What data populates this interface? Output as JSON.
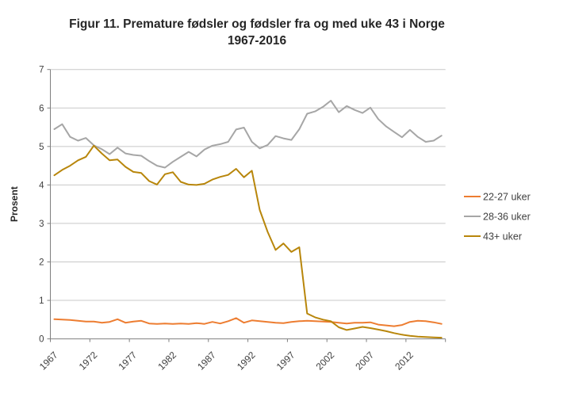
{
  "title": {
    "line1": "Figur 11. Premature fødsler og fødsler fra og med uke 43 i Norge",
    "line2": "1967-2016"
  },
  "chart_data": {
    "type": "line",
    "title": "Figur 11. Premature fødsler og fødsler fra og med uke 43 i Norge 1967-2016",
    "xlabel": "",
    "ylabel": "Prosent",
    "ylim": [
      0,
      7
    ],
    "yticks": [
      0,
      1,
      2,
      3,
      4,
      5,
      6,
      7
    ],
    "xticks": [
      1967,
      1972,
      1977,
      1982,
      1987,
      1992,
      1997,
      2002,
      2007,
      2012
    ],
    "grid": true,
    "legend_position": "right",
    "x": [
      1967,
      1968,
      1969,
      1970,
      1971,
      1972,
      1973,
      1974,
      1975,
      1976,
      1977,
      1978,
      1979,
      1980,
      1981,
      1982,
      1983,
      1984,
      1985,
      1986,
      1987,
      1988,
      1989,
      1990,
      1991,
      1992,
      1993,
      1994,
      1995,
      1996,
      1997,
      1998,
      1999,
      2000,
      2001,
      2002,
      2003,
      2004,
      2005,
      2006,
      2007,
      2008,
      2009,
      2010,
      2011,
      2012,
      2013,
      2014,
      2015,
      2016
    ],
    "series": [
      {
        "name": "22-27 uker",
        "color": "#ED7D31",
        "values": [
          0.51,
          0.5,
          0.49,
          0.47,
          0.45,
          0.45,
          0.42,
          0.44,
          0.51,
          0.42,
          0.45,
          0.47,
          0.4,
          0.39,
          0.4,
          0.39,
          0.4,
          0.39,
          0.41,
          0.39,
          0.44,
          0.4,
          0.46,
          0.54,
          0.42,
          0.48,
          0.46,
          0.44,
          0.42,
          0.41,
          0.44,
          0.46,
          0.47,
          0.46,
          0.45,
          0.44,
          0.42,
          0.4,
          0.42,
          0.42,
          0.43,
          0.37,
          0.35,
          0.33,
          0.36,
          0.44,
          0.47,
          0.46,
          0.43,
          0.39
        ]
      },
      {
        "name": "28-36 uker",
        "color": "#A6A6A6",
        "values": [
          5.45,
          5.58,
          5.25,
          5.15,
          5.22,
          5.03,
          4.93,
          4.8,
          4.97,
          4.82,
          4.78,
          4.76,
          4.62,
          4.5,
          4.45,
          4.6,
          4.73,
          4.86,
          4.74,
          4.92,
          5.02,
          5.06,
          5.12,
          5.44,
          5.49,
          5.12,
          4.95,
          5.04,
          5.27,
          5.21,
          5.17,
          5.45,
          5.85,
          5.91,
          6.03,
          6.19,
          5.89,
          6.05,
          5.95,
          5.87,
          6.01,
          5.71,
          5.52,
          5.38,
          5.24,
          5.43,
          5.25,
          5.12,
          5.15,
          5.28
        ]
      },
      {
        "name": "43+ uker",
        "color": "#B8860B",
        "values": [
          4.25,
          4.39,
          4.5,
          4.64,
          4.73,
          5.02,
          4.82,
          4.64,
          4.66,
          4.47,
          4.34,
          4.31,
          4.1,
          4.01,
          4.28,
          4.33,
          4.08,
          4.01,
          4.0,
          4.03,
          4.14,
          4.21,
          4.26,
          4.42,
          4.2,
          4.37,
          3.35,
          2.78,
          2.31,
          2.48,
          2.26,
          2.38,
          0.66,
          0.56,
          0.5,
          0.46,
          0.3,
          0.23,
          0.27,
          0.31,
          0.28,
          0.24,
          0.2,
          0.15,
          0.11,
          0.08,
          0.06,
          0.05,
          0.04,
          0.03
        ]
      }
    ],
    "axis_color": "#7F7F7F",
    "gridline_color": "#C8C8C8",
    "label_color": "#404040"
  }
}
